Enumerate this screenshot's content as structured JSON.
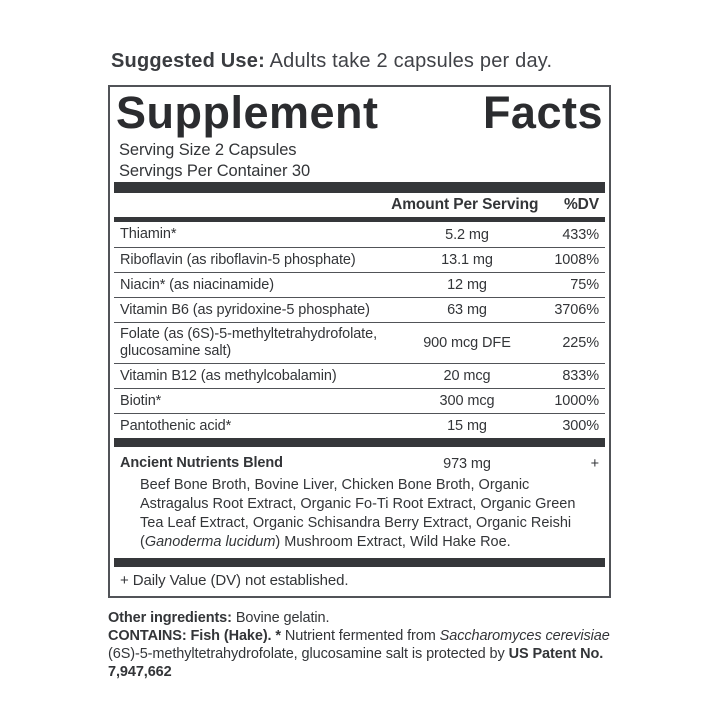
{
  "suggested_use": {
    "label": "Suggested Use:",
    "text": "Adults take 2 capsules per day."
  },
  "panel": {
    "title": "Supplement Facts",
    "serving_size": "Serving Size 2 Capsules",
    "servings_per_container": "Servings Per Container 30",
    "header": {
      "amount": "Amount Per Serving",
      "dv": "%DV"
    },
    "rows": [
      {
        "name": "Thiamin*",
        "amount": "5.2 mg",
        "dv": "433%"
      },
      {
        "name": "Riboflavin (as riboflavin-5 phosphate)",
        "amount": "13.1 mg",
        "dv": "1008%"
      },
      {
        "name": "Niacin* (as niacinamide)",
        "amount": "12 mg",
        "dv": "75%"
      },
      {
        "name": "Vitamin B6 (as pyridoxine-5 phosphate)",
        "amount": "63 mg",
        "dv": "3706%"
      },
      {
        "name": "Folate (as (6S)-5-methyltetrahydrofolate, glucosamine salt)",
        "amount": "900 mcg DFE",
        "dv": "225%"
      },
      {
        "name": "Vitamin B12 (as methylcobalamin)",
        "amount": "20 mcg",
        "dv": "833%"
      },
      {
        "name": "Biotin*",
        "amount": "300 mcg",
        "dv": "1000%"
      },
      {
        "name": "Pantothenic acid*",
        "amount": "15 mg",
        "dv": "300%"
      }
    ],
    "blend": {
      "name": "Ancient Nutrients Blend",
      "amount": "973 mg",
      "dv": "+",
      "ingredients_before_italic": "Beef Bone Broth, Bovine Liver, Chicken Bone Broth, Organic Astragalus Root Extract, Organic Fo-Ti Root Extract, Organic Green Tea Leaf Extract, Organic Schisandra Berry Extract, Organic Reishi (",
      "ingredients_italic": "Ganoderma lucidum",
      "ingredients_after_italic": ") Mushroom Extract, Wild Hake Roe."
    },
    "footnote": "+ Daily Value (DV) not established."
  },
  "footer": {
    "other_ingredients_label": "Other ingredients:",
    "other_ingredients_text": "Bovine gelatin.",
    "contains_bold": "CONTAINS: Fish (Hake). *",
    "contains_text": "Nutrient fermented from",
    "contains_italic": "Saccharomyces cerevisiae",
    "patent_text": "(6S)-5-methyltetrahydrofolate, glucosamine salt is protected by",
    "patent_bold": "US Patent No. 7,947,662"
  },
  "colors": {
    "ink": "#333538",
    "bar": "#35373a",
    "rule": "#515358"
  }
}
